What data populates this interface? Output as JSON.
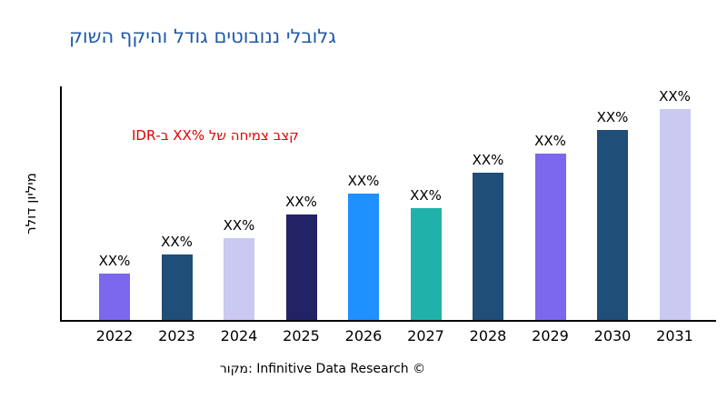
{
  "title": "גלובלי ננובוטים גודל והיקף השוק",
  "y_axis_label": "מיליון דולר",
  "annotation": "קצב צמיחה של XX%‎ ב-IDR",
  "source": "מקור: Infinitive Data Research ©",
  "colors": {
    "title": "#1f5aa8",
    "annotation": "#e50000",
    "axis": "#000000",
    "background": "#ffffff"
  },
  "chart_data": {
    "type": "bar",
    "title": "גלובלי ננובוטים גודל והיקף השוק",
    "xlabel": "",
    "ylabel": "מיליון דולר",
    "categories": [
      "2022",
      "2023",
      "2024",
      "2025",
      "2026",
      "2027",
      "2028",
      "2029",
      "2030",
      "2031"
    ],
    "values": [
      22,
      31,
      39,
      50,
      60,
      53,
      70,
      79,
      90,
      100
    ],
    "value_labels": [
      "XX%",
      "XX%",
      "XX%",
      "XX%",
      "XX%",
      "XX%",
      "XX%",
      "XX%",
      "XX%",
      "XX%"
    ],
    "bar_colors": [
      "#7b68ee",
      "#1f4e79",
      "#c9c9f2",
      "#232266",
      "#1e90ff",
      "#20b2aa",
      "#1f4e79",
      "#7b68ee",
      "#1f4e79",
      "#c9c9f2"
    ],
    "ylim": [
      0,
      110
    ],
    "grid": false,
    "legend": false
  }
}
